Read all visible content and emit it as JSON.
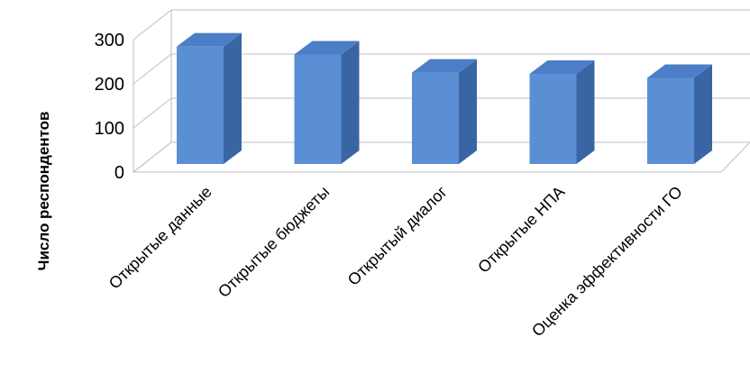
{
  "chart_data": {
    "type": "bar",
    "style": "3d-column",
    "categories": [
      "Открытые данные",
      "Открытые бюджеты",
      "Открытый диалог",
      "Открытые НПА",
      "Оценка эффективности ГО"
    ],
    "values": [
      266,
      248,
      207,
      204,
      195
    ],
    "ylabel": "Число респондентов",
    "ylim": [
      0,
      300
    ],
    "yticks": [
      "0",
      "100",
      "200",
      "300"
    ],
    "grid": true,
    "legend": "none",
    "colors": {
      "bar_front": "#5B8FD3",
      "bar_top": "#4C7EC7",
      "bar_side": "#3A65A5",
      "grid": "#BFBFBF"
    }
  }
}
